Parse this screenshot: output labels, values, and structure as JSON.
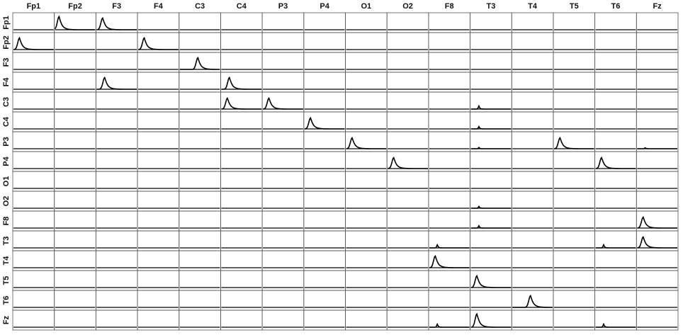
{
  "chart_data": {
    "type": "small-multiples",
    "columns": [
      "Fp1",
      "Fp2",
      "F3",
      "F4",
      "C3",
      "C4",
      "P3",
      "P4",
      "O1",
      "O2",
      "F8",
      "T3",
      "T4",
      "T5",
      "T6",
      "Fz"
    ],
    "rows": [
      "Fp1",
      "Fp2",
      "F3",
      "F4",
      "C3",
      "C4",
      "P3",
      "P4",
      "O1",
      "O2",
      "F8",
      "T3",
      "T4",
      "T5",
      "T6",
      "Fz"
    ],
    "xlim": [
      0,
      1
    ],
    "ylim": [
      0,
      1
    ],
    "color": "#000000",
    "peaks": [
      {
        "row": "Fp1",
        "col": "Fp2",
        "center": 0.1,
        "height": 0.85
      },
      {
        "row": "Fp1",
        "col": "F3",
        "center": 0.15,
        "height": 0.75
      },
      {
        "row": "Fp2",
        "col": "Fp1",
        "center": 0.15,
        "height": 0.75
      },
      {
        "row": "Fp2",
        "col": "F4",
        "center": 0.15,
        "height": 0.75
      },
      {
        "row": "F3",
        "col": "C3",
        "center": 0.45,
        "height": 0.75
      },
      {
        "row": "F4",
        "col": "F3",
        "center": 0.2,
        "height": 0.75
      },
      {
        "row": "F4",
        "col": "C4",
        "center": 0.2,
        "height": 0.75
      },
      {
        "row": "C3",
        "col": "C4",
        "center": 0.15,
        "height": 0.7
      },
      {
        "row": "C3",
        "col": "P3",
        "center": 0.15,
        "height": 0.7
      },
      {
        "row": "C3",
        "col": "T3",
        "center": 0.2,
        "height": 0.2
      },
      {
        "row": "C4",
        "col": "P4",
        "center": 0.15,
        "height": 0.7
      },
      {
        "row": "C4",
        "col": "T3",
        "center": 0.2,
        "height": 0.15
      },
      {
        "row": "P3",
        "col": "O1",
        "center": 0.15,
        "height": 0.7
      },
      {
        "row": "P3",
        "col": "T5",
        "center": 0.15,
        "height": 0.7
      },
      {
        "row": "P3",
        "col": "T3",
        "center": 0.2,
        "height": 0.08
      },
      {
        "row": "P3",
        "col": "Fz",
        "center": 0.2,
        "height": 0.06
      },
      {
        "row": "P4",
        "col": "O2",
        "center": 0.15,
        "height": 0.7
      },
      {
        "row": "P4",
        "col": "T6",
        "center": 0.15,
        "height": 0.7
      },
      {
        "row": "O2",
        "col": "T3",
        "center": 0.2,
        "height": 0.12
      },
      {
        "row": "F8",
        "col": "Fz",
        "center": 0.15,
        "height": 0.7
      },
      {
        "row": "F8",
        "col": "T3",
        "center": 0.2,
        "height": 0.15
      },
      {
        "row": "T3",
        "col": "F8",
        "center": 0.2,
        "height": 0.2
      },
      {
        "row": "T3",
        "col": "T6",
        "center": 0.2,
        "height": 0.2
      },
      {
        "row": "T3",
        "col": "Fz",
        "center": 0.15,
        "height": 0.7
      },
      {
        "row": "T4",
        "col": "F8",
        "center": 0.15,
        "height": 0.75
      },
      {
        "row": "T5",
        "col": "T3",
        "center": 0.15,
        "height": 0.75
      },
      {
        "row": "T6",
        "col": "T4",
        "center": 0.45,
        "height": 0.75
      },
      {
        "row": "Fz",
        "col": "F8",
        "center": 0.2,
        "height": 0.2
      },
      {
        "row": "Fz",
        "col": "T3",
        "center": 0.15,
        "height": 0.85
      },
      {
        "row": "Fz",
        "col": "T6",
        "center": 0.2,
        "height": 0.2
      }
    ]
  }
}
